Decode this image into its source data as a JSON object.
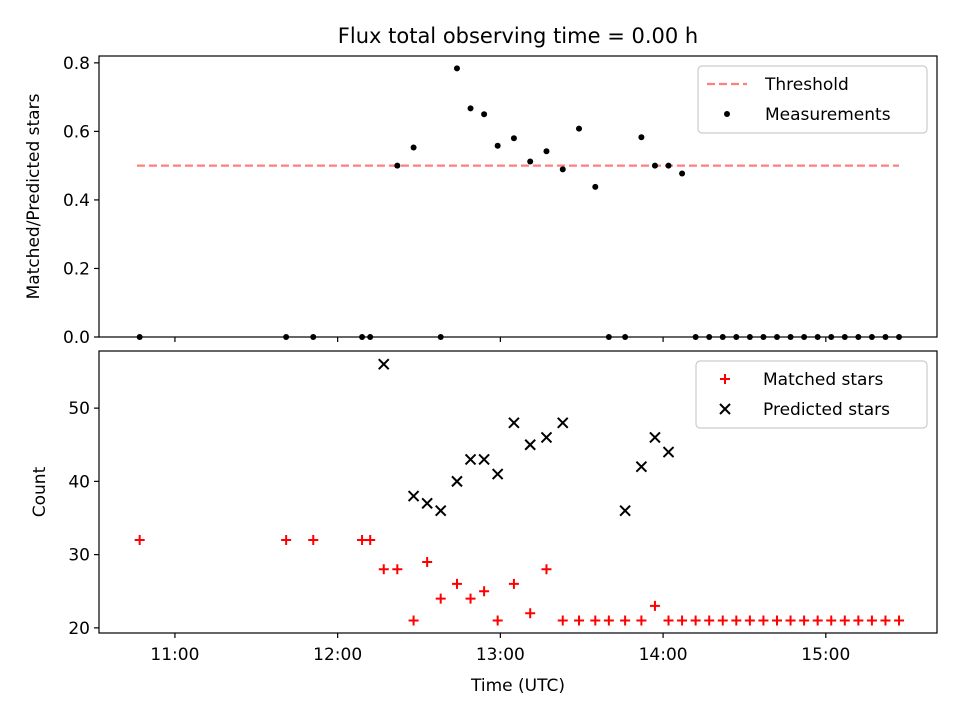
{
  "title": "Flux total observing time = 0.00 h",
  "colors": {
    "threshold": "#ff7f7f",
    "measurements": "#000000",
    "matched": "#ff0000",
    "predicted": "#000000"
  },
  "chart_data": [
    {
      "type": "scatter",
      "ylabel": "Matched/Predicted stars",
      "xlim": [
        "10:32",
        "15:41"
      ],
      "ylim": [
        0,
        0.82
      ],
      "yticks": [
        0.0,
        0.2,
        0.4,
        0.6,
        0.8
      ],
      "ytick_labels": [
        "0.0",
        "0.2",
        "0.4",
        "0.6",
        "0.8"
      ],
      "legend": {
        "position": "top-right",
        "labels": [
          "Threshold",
          "Measurements"
        ]
      },
      "threshold": {
        "name": "Threshold",
        "value": 0.5,
        "x": [
          "10:46",
          "15:27"
        ]
      },
      "series": [
        {
          "name": "Measurements",
          "x": [
            "10:47",
            "11:41",
            "11:51",
            "12:09",
            "12:12",
            "12:22",
            "12:28",
            "12:38",
            "12:44",
            "12:49",
            "12:54",
            "12:59",
            "13:05",
            "13:11",
            "13:17",
            "13:23",
            "13:29",
            "13:35",
            "13:40",
            "13:46",
            "13:52",
            "13:57",
            "14:02",
            "14:07",
            "14:12",
            "14:17",
            "14:22",
            "14:27",
            "14:32",
            "14:37",
            "14:42",
            "14:47",
            "14:52",
            "14:57",
            "15:02",
            "15:07",
            "15:12",
            "15:17",
            "15:22",
            "15:27"
          ],
          "y": [
            0,
            0,
            0,
            0,
            0,
            0.5,
            0.553,
            0,
            0.784,
            0.667,
            0.65,
            0.558,
            0.58,
            0.512,
            0.542,
            0.489,
            0.608,
            0.438,
            0,
            0,
            0.583,
            0.5,
            0.5,
            0.477,
            0,
            0,
            0,
            0,
            0,
            0,
            0,
            0,
            0,
            0,
            0,
            0,
            0,
            0,
            0,
            0
          ]
        }
      ]
    },
    {
      "type": "scatter",
      "xlabel": "Time (UTC)",
      "ylabel": "Count",
      "xlim": [
        "10:32",
        "15:41"
      ],
      "ylim": [
        19.3,
        57.8
      ],
      "yticks": [
        20,
        30,
        40,
        50
      ],
      "ytick_labels": [
        "20",
        "30",
        "40",
        "50"
      ],
      "xticks": [
        "11:00",
        "12:00",
        "13:00",
        "14:00",
        "15:00"
      ],
      "legend": {
        "position": "top-right",
        "labels": [
          "Matched stars",
          "Predicted stars"
        ]
      },
      "series": [
        {
          "name": "Matched stars",
          "x": [
            "10:47",
            "11:41",
            "11:51",
            "12:09",
            "12:12",
            "12:17",
            "12:22",
            "12:28",
            "12:33",
            "12:38",
            "12:44",
            "12:49",
            "12:54",
            "12:59",
            "13:05",
            "13:11",
            "13:17",
            "13:23",
            "13:29",
            "13:35",
            "13:40",
            "13:46",
            "13:52",
            "13:57",
            "14:02",
            "14:07",
            "14:12",
            "14:17",
            "14:22",
            "14:27",
            "14:32",
            "14:37",
            "14:42",
            "14:47",
            "14:52",
            "14:57",
            "15:02",
            "15:07",
            "15:12",
            "15:17",
            "15:22",
            "15:27"
          ],
          "y": [
            32,
            32,
            32,
            32,
            32,
            28,
            28,
            21,
            29,
            24,
            26,
            24,
            25,
            21,
            26,
            22,
            28,
            21,
            21,
            21,
            21,
            21,
            21,
            23,
            21,
            21,
            21,
            21,
            21,
            21,
            21,
            21,
            21,
            21,
            21,
            21,
            21,
            21,
            21,
            21,
            21,
            21
          ]
        },
        {
          "name": "Predicted stars",
          "x": [
            "12:17",
            "12:28",
            "12:33",
            "12:38",
            "12:44",
            "12:49",
            "12:54",
            "12:59",
            "13:05",
            "13:11",
            "13:17",
            "13:23",
            "13:46",
            "13:52",
            "13:57",
            "14:02"
          ],
          "y": [
            56,
            38,
            37,
            36,
            40,
            43,
            43,
            41,
            48,
            45,
            46,
            48,
            36,
            42,
            46,
            44
          ]
        }
      ]
    }
  ]
}
